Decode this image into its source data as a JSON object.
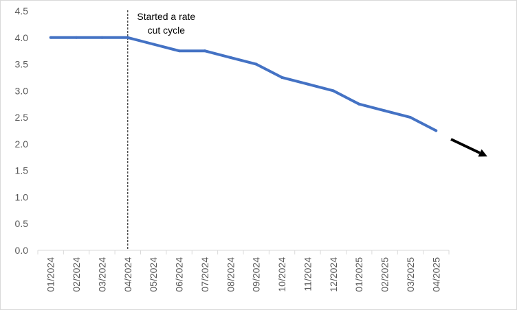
{
  "chart_data": {
    "type": "line",
    "title": "",
    "xlabel": "",
    "ylabel": "",
    "categories": [
      "01/2024",
      "02/2024",
      "03/2024",
      "04/2024",
      "05/2024",
      "06/2024",
      "07/2024",
      "08/2024",
      "09/2024",
      "10/2024",
      "11/2024",
      "12/2024",
      "01/2025",
      "02/2025",
      "03/2025",
      "04/2025"
    ],
    "series": [
      {
        "values": [
          4.0,
          4.0,
          4.0,
          4.0,
          3.875,
          3.75,
          3.75,
          3.625,
          3.5,
          3.25,
          3.125,
          3.0,
          2.75,
          2.625,
          2.5,
          2.25
        ],
        "color": "#4472c4"
      }
    ],
    "ylim": [
      0,
      4.5
    ],
    "yticks": [
      "0.0",
      "0.5",
      "1.0",
      "1.5",
      "2.0",
      "2.5",
      "3.0",
      "3.5",
      "4.0",
      "4.5"
    ],
    "grid": false,
    "legend": "none",
    "annotations": {
      "event_category": "04/2024",
      "event_label_line1": "Started a rate",
      "event_label_line2": "cut cycle",
      "trend_arrow": "down-right",
      "arrow_color": "#000000"
    }
  }
}
